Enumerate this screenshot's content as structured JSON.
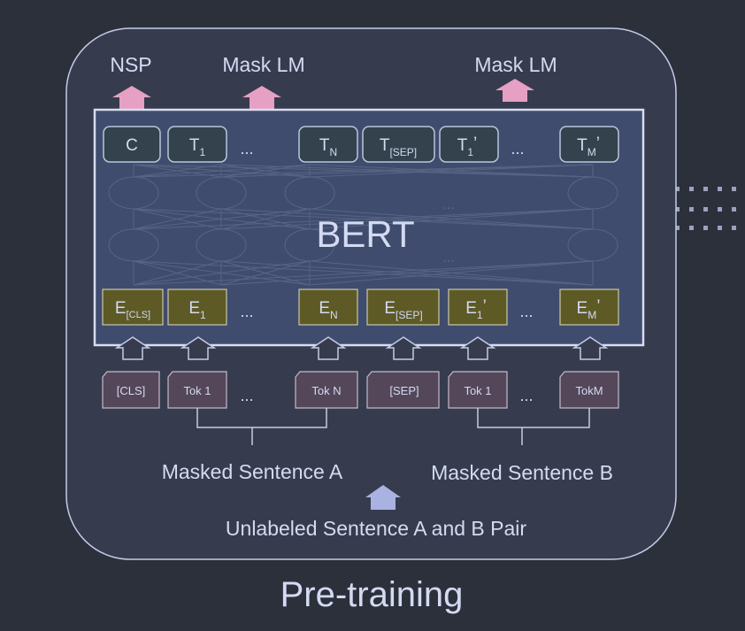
{
  "caption": "Pre-training",
  "input_label": "Unlabeled Sentence A and B Pair",
  "sentence_a": "Masked Sentence A",
  "sentence_b": "Masked Sentence B",
  "model_name": "BERT",
  "outputs": {
    "nsp": "NSP",
    "mask_lm_1": "Mask LM",
    "mask_lm_2": "Mask LM"
  },
  "ellipsis": "...",
  "faint_ellipsis": "...",
  "tokens": [
    "[CLS]",
    "Tok 1",
    "Tok N",
    "[SEP]",
    "Tok 1",
    "TokM"
  ],
  "embeddings": [
    {
      "base": "E",
      "sub": "[CLS]",
      "prime": ""
    },
    {
      "base": "E",
      "sub": "1",
      "prime": ""
    },
    {
      "base": "E",
      "sub": "N",
      "prime": ""
    },
    {
      "base": "E",
      "sub": "[SEP]",
      "prime": ""
    },
    {
      "base": "E",
      "sub": "1",
      "prime": "’"
    },
    {
      "base": "E",
      "sub": "M",
      "prime": "’"
    }
  ],
  "output_vectors": [
    {
      "base": "C",
      "sub": "",
      "prime": ""
    },
    {
      "base": "T",
      "sub": "1",
      "prime": ""
    },
    {
      "base": "T",
      "sub": "N",
      "prime": ""
    },
    {
      "base": "T",
      "sub": "[SEP]",
      "prime": ""
    },
    {
      "base": "T",
      "sub": "1",
      "prime": "’"
    },
    {
      "base": "T",
      "sub": "M",
      "prime": "’"
    }
  ],
  "colors": {
    "background": "#2c303b",
    "panel": "#363c4d",
    "bert_box": "#3f4c6d",
    "embedding_fill": "#5d5a26",
    "output_fill": "#34424d",
    "token_fill": "#54475a",
    "pink_arrow": "#e5a0c3",
    "lavender_arrow": "#aab2e2",
    "text": "#d4daf2"
  }
}
